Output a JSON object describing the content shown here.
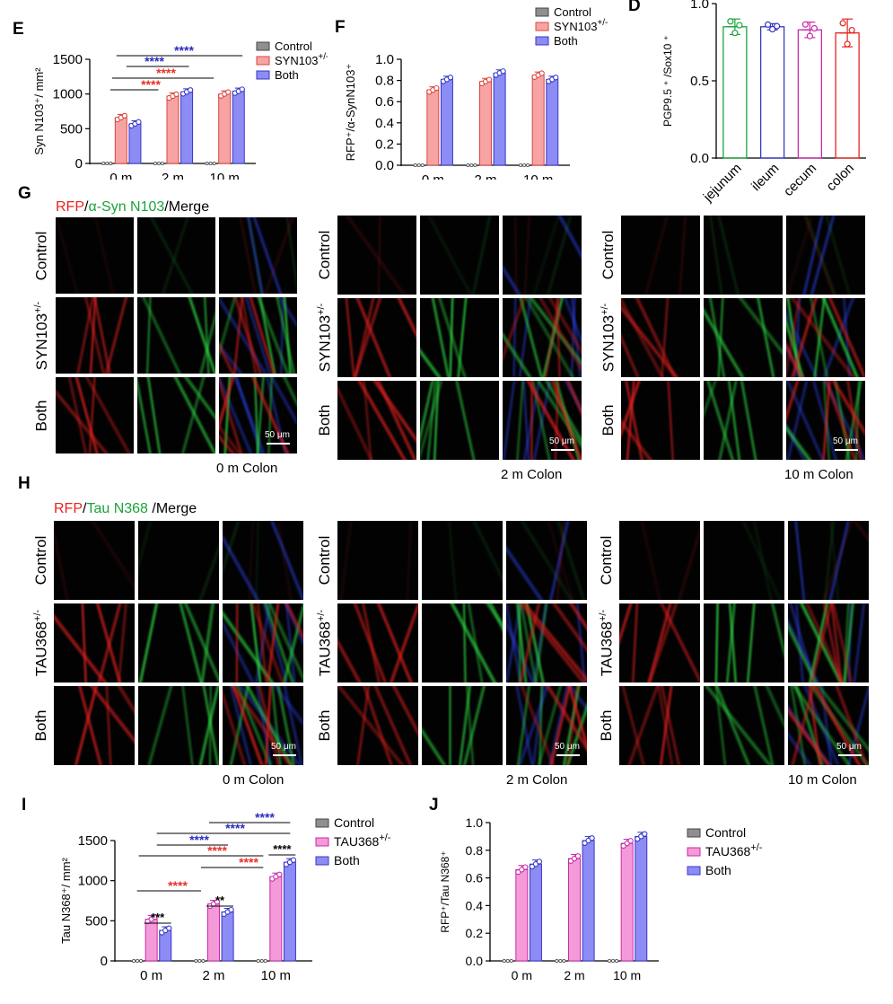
{
  "panels": {
    "D": {
      "label": "D"
    },
    "E": {
      "label": "E"
    },
    "F": {
      "label": "F"
    },
    "G": {
      "label": "G",
      "header": {
        "a": "RFP",
        "sep1": "/",
        "b": "α-Syn N103",
        "c": "/Merge"
      },
      "groups": [
        {
          "caption": "0 m Colon",
          "rows": [
            "Control",
            "SYN103",
            "Both"
          ],
          "sup": [
            "",
            "+/-",
            ""
          ],
          "scale": "50 μm"
        },
        {
          "caption": "2 m Colon",
          "rows": [
            "Control",
            "SYN103",
            "Both"
          ],
          "sup": [
            "",
            "+/-",
            ""
          ],
          "scale": "50 μm"
        },
        {
          "caption": "10 m Colon",
          "rows": [
            "Control",
            "SYN103",
            "Both"
          ],
          "sup": [
            "",
            "+/-",
            ""
          ],
          "scale": "50 μm"
        }
      ]
    },
    "H": {
      "label": "H",
      "header": {
        "a": "RFP",
        "sep1": "/",
        "b": "Tau N368",
        "c": " /Merge"
      },
      "groups": [
        {
          "caption": "0 m Colon",
          "rows": [
            "Control",
            "TAU368",
            "Both"
          ],
          "sup": [
            "",
            "+/-",
            ""
          ],
          "scale": "50 μm"
        },
        {
          "caption": "2 m Colon",
          "rows": [
            "Control",
            "TAU368",
            "Both"
          ],
          "sup": [
            "",
            "+/-",
            ""
          ],
          "scale": "50 μm"
        },
        {
          "caption": "10 m Colon",
          "rows": [
            "Control",
            "TAU368",
            "Both"
          ],
          "sup": [
            "",
            "+/-",
            ""
          ],
          "scale": "50 μm"
        }
      ]
    },
    "I": {
      "label": "I"
    },
    "J": {
      "label": "J"
    }
  },
  "colors": {
    "red": "#e8231f",
    "green": "#1aa33a",
    "pink": "#f7a3a3",
    "pink_stroke": "#d9473f",
    "blue": "#8d8cf5",
    "blue_stroke": "#3737c9",
    "gray": "#8f8f8f",
    "magenta": "#f59ad8",
    "magenta_stroke": "#c92aa8",
    "sig_blue": "#2b2bc2",
    "sig_red": "#e8312a"
  },
  "chart_data": [
    {
      "id": "D",
      "type": "bar",
      "categories": [
        "jejunum",
        "ileum",
        "cecum",
        "colon"
      ],
      "values": [
        0.85,
        0.85,
        0.83,
        0.81
      ],
      "errors": [
        0.05,
        0.02,
        0.05,
        0.09
      ],
      "ylabel": "PGP9.5 ⁺ /Sox10 ⁺",
      "yticks": [
        "0.0",
        "0.5",
        "1.0"
      ],
      "ylim": [
        0,
        1.0
      ],
      "bar_colors": [
        "#1aa33a",
        "#3737c9",
        "#c92aa8",
        "#e8231f"
      ]
    },
    {
      "id": "E",
      "type": "bar",
      "categories": [
        "0 m",
        "2 m",
        "10 m"
      ],
      "ylabel": "Syn N103⁺/ mm²",
      "yticks": [
        "0",
        "500",
        "1000",
        "1500"
      ],
      "ylim": [
        0,
        1500
      ],
      "legend": [
        "Control",
        "SYN103",
        "Both"
      ],
      "legend_sup": "+/-",
      "series": [
        {
          "name": "Control",
          "values": [
            0,
            0,
            0
          ]
        },
        {
          "name": "SYN103",
          "values": [
            660,
            970,
            1000
          ]
        },
        {
          "name": "Both",
          "values": [
            570,
            1030,
            1040
          ]
        }
      ],
      "significance": [
        {
          "text": "****",
          "color": "blue"
        },
        {
          "text": "****",
          "color": "blue"
        },
        {
          "text": "****",
          "color": "red"
        },
        {
          "text": "****",
          "color": "red"
        }
      ]
    },
    {
      "id": "F",
      "type": "bar",
      "categories": [
        "0 m",
        "2 m",
        "10 m"
      ],
      "ylabel": "RFP⁺/α-SynN103⁺",
      "yticks": [
        "0.0",
        "0.2",
        "0.4",
        "0.6",
        "0.8",
        "1.0"
      ],
      "ylim": [
        0,
        1.0
      ],
      "legend": [
        "Control",
        "SYN103",
        "Both"
      ],
      "legend_sup": "+/-",
      "series": [
        {
          "name": "Control",
          "values": [
            0,
            0,
            0
          ]
        },
        {
          "name": "SYN103",
          "values": [
            0.71,
            0.79,
            0.85
          ]
        },
        {
          "name": "Both",
          "values": [
            0.81,
            0.87,
            0.81
          ]
        }
      ]
    },
    {
      "id": "I",
      "type": "bar",
      "categories": [
        "0 m",
        "2 m",
        "10 m"
      ],
      "ylabel": "Tau N368⁺/ mm²",
      "yticks": [
        "0",
        "500",
        "1000",
        "1500"
      ],
      "ylim": [
        0,
        1500
      ],
      "legend": [
        "Control",
        "TAU368",
        "Both"
      ],
      "legend_sup": "+/-",
      "series": [
        {
          "name": "Control",
          "values": [
            0,
            0,
            0
          ]
        },
        {
          "name": "TAU368",
          "values": [
            520,
            710,
            1050
          ]
        },
        {
          "name": "Both",
          "values": [
            380,
            610,
            1230
          ]
        }
      ],
      "significance": [
        {
          "text": "****",
          "color": "blue"
        },
        {
          "text": "****",
          "color": "blue"
        },
        {
          "text": "****",
          "color": "blue"
        },
        {
          "text": "****",
          "color": "red"
        },
        {
          "text": "****",
          "color": "red"
        },
        {
          "text": "****",
          "color": "red"
        },
        {
          "text": "***",
          "color": "black"
        },
        {
          "text": "**",
          "color": "black"
        },
        {
          "text": "****",
          "color": "black"
        }
      ]
    },
    {
      "id": "J",
      "type": "bar",
      "categories": [
        "0 m",
        "2 m",
        "10 m"
      ],
      "ylabel": "RFP⁺/Tau N368⁺",
      "yticks": [
        "0.0",
        "0.2",
        "0.4",
        "0.6",
        "0.8",
        "1.0"
      ],
      "ylim": [
        0,
        1.0
      ],
      "legend": [
        "Control",
        "TAU368",
        "Both"
      ],
      "legend_sup": "+/-",
      "series": [
        {
          "name": "Control",
          "values": [
            0,
            0,
            0
          ]
        },
        {
          "name": "TAU368",
          "values": [
            0.66,
            0.74,
            0.85
          ]
        },
        {
          "name": "Both",
          "values": [
            0.7,
            0.87,
            0.9
          ]
        }
      ]
    }
  ]
}
